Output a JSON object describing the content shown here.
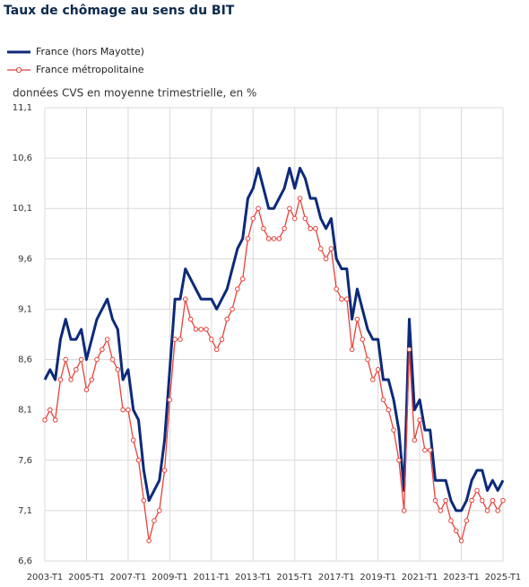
{
  "chart_data": {
    "type": "line",
    "title": "Taux de chômage au sens du BIT",
    "y_label": "données CVS en moyenne trimestrielle, en %",
    "categories": [
      "2003-T1",
      null,
      null,
      null,
      null,
      null,
      null,
      null,
      "2005-T1",
      null,
      null,
      null,
      null,
      null,
      null,
      null,
      "2007-T1",
      null,
      null,
      null,
      null,
      null,
      null,
      null,
      "2009-T1",
      null,
      null,
      null,
      null,
      null,
      null,
      null,
      "2011-T1",
      null,
      null,
      null,
      null,
      null,
      null,
      null,
      "2013-T1",
      null,
      null,
      null,
      null,
      null,
      null,
      null,
      "2015-T1",
      null,
      null,
      null,
      null,
      null,
      null,
      null,
      "2017-T1",
      null,
      null,
      null,
      null,
      null,
      null,
      null,
      "2019-T1",
      null,
      null,
      null,
      null,
      null,
      null,
      null,
      "2021-T1",
      null,
      null,
      null,
      null,
      null,
      null,
      null,
      "2023-T1",
      null,
      null,
      null,
      null,
      null,
      null,
      null,
      "2025-T1"
    ],
    "series": [
      {
        "name": "France (hors Mayotte)",
        "color": "#0c2a7a",
        "values": [
          8.4,
          8.5,
          8.4,
          8.8,
          9.0,
          8.8,
          8.8,
          8.9,
          8.6,
          8.8,
          9.0,
          9.1,
          9.2,
          9.0,
          8.9,
          8.4,
          8.5,
          8.1,
          8.0,
          7.5,
          7.2,
          7.3,
          7.4,
          7.8,
          8.5,
          9.2,
          9.2,
          9.5,
          9.4,
          9.3,
          9.2,
          9.2,
          9.2,
          9.1,
          9.2,
          9.3,
          9.5,
          9.7,
          9.8,
          10.2,
          10.3,
          10.5,
          10.3,
          10.1,
          10.1,
          10.2,
          10.3,
          10.5,
          10.3,
          10.5,
          10.4,
          10.2,
          10.2,
          10.0,
          9.9,
          10.0,
          9.6,
          9.5,
          9.5,
          9.0,
          9.3,
          9.1,
          8.9,
          8.8,
          8.8,
          8.4,
          8.4,
          8.2,
          7.9,
          7.3,
          9.0,
          8.1,
          8.2,
          7.9,
          7.9,
          7.4,
          7.4,
          7.4,
          7.2,
          7.1,
          7.1,
          7.2,
          7.4,
          7.5,
          7.5,
          7.3,
          7.4,
          7.3,
          7.4
        ]
      },
      {
        "name": "France métropolitaine",
        "color": "#e8403a",
        "values": [
          8.0,
          8.1,
          8.0,
          8.4,
          8.6,
          8.4,
          8.5,
          8.6,
          8.3,
          8.4,
          8.6,
          8.7,
          8.8,
          8.6,
          8.5,
          8.1,
          8.1,
          7.8,
          7.6,
          7.2,
          6.8,
          7.0,
          7.1,
          7.5,
          8.2,
          8.8,
          8.8,
          9.2,
          9.0,
          8.9,
          8.9,
          8.9,
          8.8,
          8.7,
          8.8,
          9.0,
          9.1,
          9.3,
          9.4,
          9.8,
          10.0,
          10.1,
          9.9,
          9.8,
          9.8,
          9.8,
          9.9,
          10.1,
          10.0,
          10.2,
          10.0,
          9.9,
          9.9,
          9.7,
          9.6,
          9.7,
          9.3,
          9.2,
          9.2,
          8.7,
          9.0,
          8.8,
          8.6,
          8.4,
          8.5,
          8.2,
          8.1,
          7.9,
          7.6,
          7.1,
          8.7,
          7.8,
          8.0,
          7.7,
          7.7,
          7.2,
          7.1,
          7.2,
          7.0,
          6.9,
          6.8,
          7.0,
          7.2,
          7.3,
          7.2,
          7.1,
          7.2,
          7.1,
          7.2
        ]
      }
    ],
    "ylim": [
      6.6,
      11.1
    ],
    "yticks": [
      {
        "value": 6.6,
        "label": "6,6"
      },
      {
        "value": 7.1,
        "label": "7,1"
      },
      {
        "value": 7.6,
        "label": "7,6"
      },
      {
        "value": 8.1,
        "label": "8,1"
      },
      {
        "value": 8.6,
        "label": "8,6"
      },
      {
        "value": 9.1,
        "label": "9,1"
      },
      {
        "value": 9.6,
        "label": "9,6"
      },
      {
        "value": 10.1,
        "label": "10,1"
      },
      {
        "value": 10.6,
        "label": "10,6"
      },
      {
        "value": 11.1,
        "label": "11,1"
      }
    ],
    "grid": true
  }
}
